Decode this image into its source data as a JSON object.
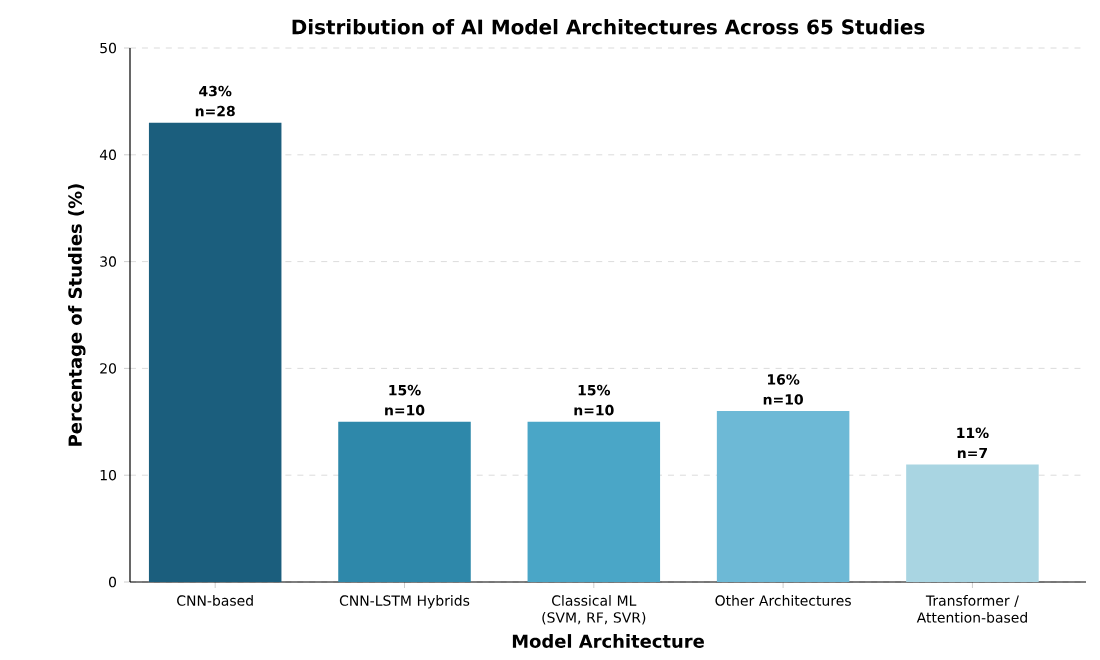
{
  "chart_data": {
    "type": "bar",
    "title": "Distribution of AI Model Architectures Across 65 Studies",
    "xlabel": "Model Architecture",
    "ylabel": "Percentage of Studies (%)",
    "categories": [
      "CNN-based",
      "CNN-LSTM Hybrids",
      "Classical ML (SVM, RF, SVR)",
      "Other Architectures",
      "Transformer / Attention-based"
    ],
    "values": [
      43,
      15,
      15,
      16,
      11
    ],
    "colors": [
      "#1b5e7d",
      "#2e88aa",
      "#4aa6c7",
      "#6db9d6",
      "#a9d5e2"
    ],
    "value_labels": [
      "43%",
      "15%",
      "15%",
      "16%",
      "11%"
    ],
    "annotations": [
      {
        "text": "n=28",
        "x": "CNN-based",
        "y": 43
      },
      {
        "text": "n=10",
        "x": "CNN-LSTM Hybrids",
        "y": 15
      },
      {
        "text": "n=10",
        "x": "Classical ML (SVM, RF, SVR)",
        "y": 15
      },
      {
        "text": "n=10",
        "x": "Other Architectures",
        "y": 16
      },
      {
        "text": "n=7",
        "x": "Transformer / Attention-based",
        "y": 11
      }
    ],
    "ylim": [
      0,
      50
    ],
    "yticks": [
      0,
      10,
      20,
      30,
      40,
      50
    ],
    "grid": "y"
  }
}
